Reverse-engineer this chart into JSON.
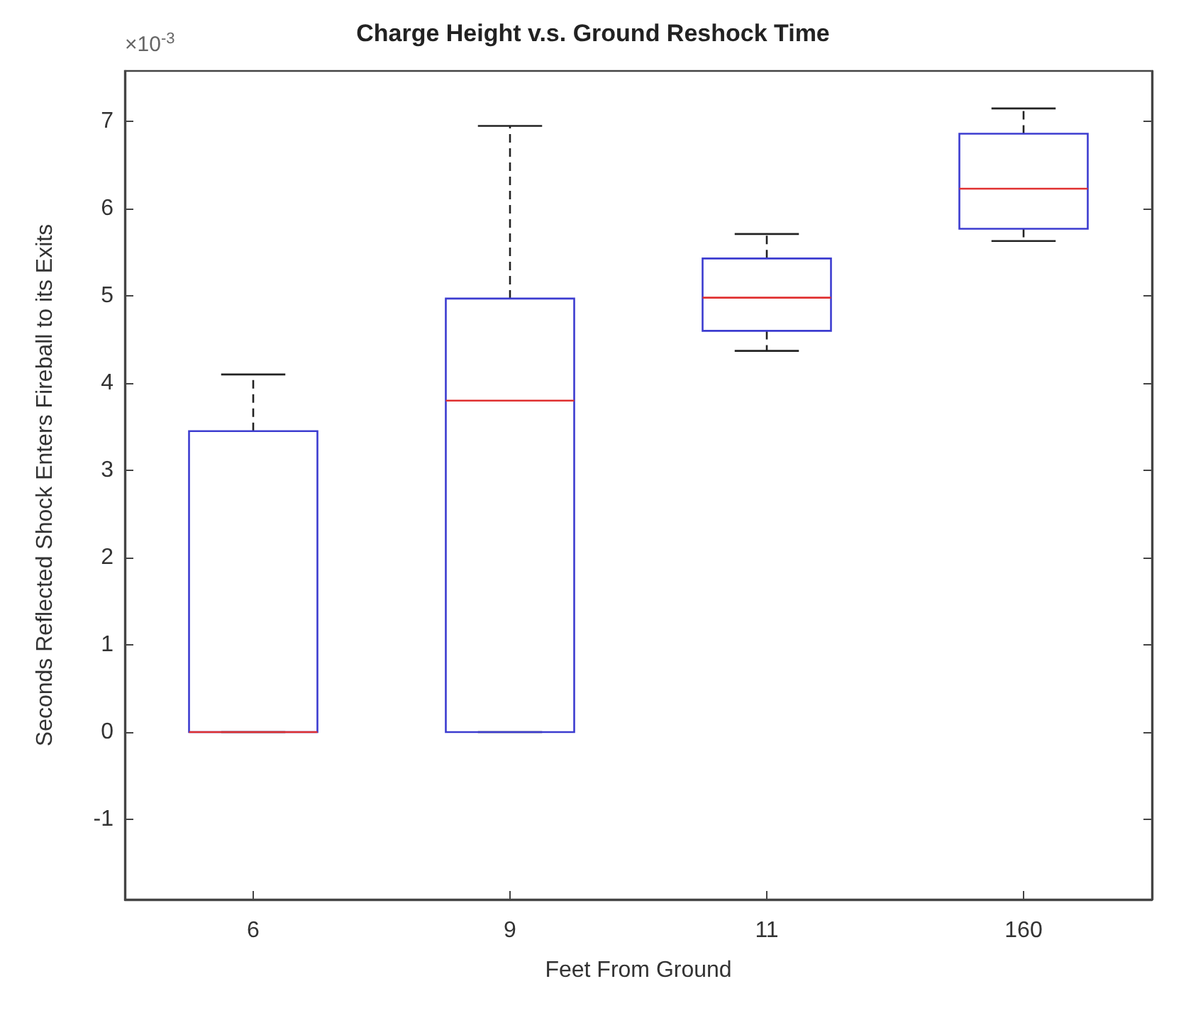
{
  "chart_data": {
    "type": "box",
    "title": "Charge Height v.s. Ground Reshock Time",
    "xlabel": "Feet From Ground",
    "ylabel": "Seconds Reflected Shock Enters Fireball to its Exits",
    "annotations": [
      "×10$^{-3}$"
    ],
    "categories": [
      "6",
      "9",
      "11",
      "160"
    ],
    "series": [
      {
        "color": "#3c3cd0",
        "boxes": [
          {
            "low": 0,
            "q1": 0,
            "median": 0,
            "q3": 3.45,
            "high": 4.1
          },
          {
            "low": 0,
            "q1": 0,
            "median": 3.8,
            "q3": 4.97,
            "high": 6.95
          },
          {
            "low": 4.37,
            "q1": 4.6,
            "median": 4.98,
            "q3": 5.43,
            "high": 5.71
          },
          {
            "low": 5.63,
            "q1": 5.77,
            "median": 6.23,
            "q3": 6.86,
            "high": 7.15
          }
        ]
      }
    ],
    "ylim": [
      -1.92,
      7.58
    ],
    "yticks": [
      -1,
      0,
      1,
      2,
      3,
      4,
      5,
      6,
      7
    ],
    "line_style": "dashed"
  }
}
